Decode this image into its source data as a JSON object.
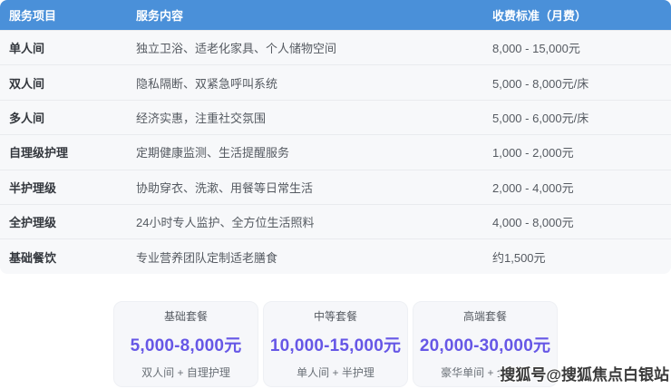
{
  "table": {
    "headers": {
      "item": "服务项目",
      "content": "服务内容",
      "price": "收费标准（月费）"
    },
    "rows": [
      {
        "item": "单人间",
        "content": "独立卫浴、适老化家具、个人储物空间",
        "price": "8,000 - 15,000元"
      },
      {
        "item": "双人间",
        "content": "隐私隔断、双紧急呼叫系统",
        "price": "5,000 - 8,000元/床"
      },
      {
        "item": "多人间",
        "content": "经济实惠，注重社交氛围",
        "price": "5,000 - 6,000元/床"
      },
      {
        "item": "自理级护理",
        "content": "定期健康监测、生活提醒服务",
        "price": "1,000 - 2,000元"
      },
      {
        "item": "半护理级",
        "content": "协助穿衣、洗漱、用餐等日常生活",
        "price": "2,000 - 4,000元"
      },
      {
        "item": "全护理级",
        "content": "24小时专人监护、全方位生活照料",
        "price": "4,000 - 8,000元"
      },
      {
        "item": "基础餐饮",
        "content": "专业营养团队定制适老膳食",
        "price": "约1,500元"
      }
    ]
  },
  "packages": [
    {
      "name": "基础套餐",
      "price": "5,000-8,000元",
      "combo": "双人间 + 自理护理"
    },
    {
      "name": "中等套餐",
      "price": "10,000-15,000元",
      "combo": "单人间 + 半护理"
    },
    {
      "name": "高端套餐",
      "price": "20,000-30,000元",
      "combo": "豪华单间 + 全护理"
    }
  ],
  "watermark": "搜狐号@搜狐焦点白银站",
  "colors": {
    "header_bg": "#4a90d9",
    "row_bg": "#f7f8fa",
    "price_accent": "#6657e6"
  }
}
